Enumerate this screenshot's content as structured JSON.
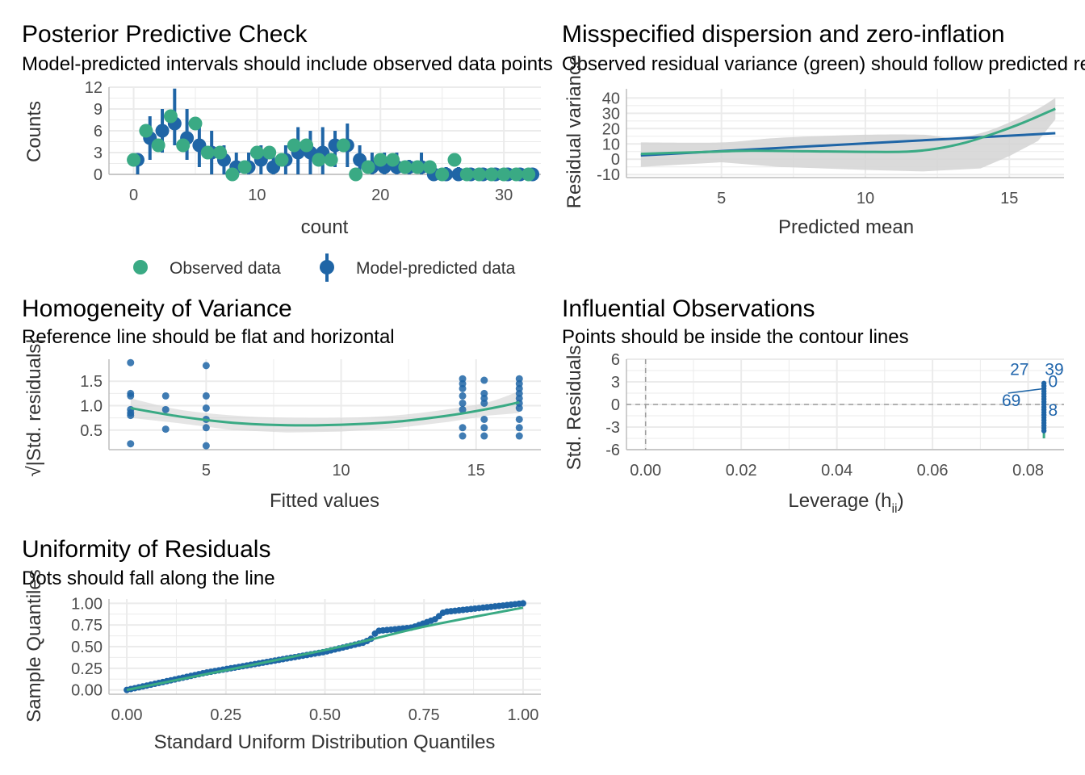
{
  "colors": {
    "observed": "#3aaa84",
    "predicted": "#1f65a6",
    "band": "#d3d3d3",
    "grid": "#ebebeb"
  },
  "panels": {
    "ppc": {
      "title": "Posterior Predictive Check",
      "subtitle": "Model-predicted intervals should include observed data points",
      "xlabel": "count",
      "ylabel": "Counts",
      "legend_observed": "Observed data",
      "legend_predicted": "Model-predicted data"
    },
    "disp": {
      "title": "Misspecified dispersion and zero-inflation",
      "subtitle": "Observed residual variance (green) should follow predicted residual variance (blue)",
      "xlabel": "Predicted mean",
      "ylabel": "Residual variance"
    },
    "homog": {
      "title": "Homogeneity of Variance",
      "subtitle": "Reference line should be flat and horizontal",
      "xlabel": "Fitted values",
      "ylabel": "√|Std. residuals|"
    },
    "infl": {
      "title": "Influential Observations",
      "subtitle": "Points should be inside the contour lines",
      "xlabel": "Leverage (h",
      "xlabel_sub": "ii",
      "xlabel_end": ")",
      "ylabel": "Std. Residuals"
    },
    "unif": {
      "title": "Uniformity of Residuals",
      "subtitle": "Dots should fall along the line",
      "xlabel": "Standard Uniform Distribution Quantiles",
      "ylabel": "Sample Quantiles"
    }
  },
  "chart_data": [
    {
      "id": "ppc",
      "type": "scatter",
      "xlim": [
        -2,
        33
      ],
      "ylim": [
        0,
        12
      ],
      "xticks": [
        0,
        10,
        20,
        30
      ],
      "yticks": [
        0,
        3,
        6,
        9,
        12
      ],
      "observed": [
        [
          0,
          2
        ],
        [
          1,
          6
        ],
        [
          2,
          4
        ],
        [
          3,
          8
        ],
        [
          4,
          4
        ],
        [
          5,
          7
        ],
        [
          6,
          3
        ],
        [
          7,
          3
        ],
        [
          8,
          0
        ],
        [
          9,
          1
        ],
        [
          10,
          3
        ],
        [
          11,
          3
        ],
        [
          12,
          2
        ],
        [
          13,
          4
        ],
        [
          14,
          4
        ],
        [
          15,
          2
        ],
        [
          16,
          2
        ],
        [
          17,
          4
        ],
        [
          18,
          0
        ],
        [
          19,
          1
        ],
        [
          20,
          2
        ],
        [
          21,
          2
        ],
        [
          22,
          1
        ],
        [
          23,
          1
        ],
        [
          24,
          1
        ],
        [
          25,
          0
        ],
        [
          26,
          2
        ],
        [
          27,
          0
        ],
        [
          28,
          0
        ],
        [
          29,
          0
        ],
        [
          30,
          0
        ],
        [
          31,
          0
        ],
        [
          32,
          0
        ]
      ],
      "predicted": [
        [
          0,
          2,
          0,
          2
        ],
        [
          1,
          5,
          2,
          8
        ],
        [
          2,
          6,
          3,
          9
        ],
        [
          3,
          7,
          4,
          11.8
        ],
        [
          4,
          5,
          2,
          9
        ],
        [
          5,
          4,
          1,
          7
        ],
        [
          6,
          3,
          0,
          6
        ],
        [
          7,
          2,
          0,
          4
        ],
        [
          8,
          1,
          0,
          3
        ],
        [
          9,
          1,
          0,
          3
        ],
        [
          10,
          2,
          0,
          4
        ],
        [
          11,
          1,
          0,
          3
        ],
        [
          12,
          2,
          0,
          4
        ],
        [
          13,
          3,
          0,
          6.5
        ],
        [
          14,
          3,
          0,
          6
        ],
        [
          15,
          3,
          0,
          6.5
        ],
        [
          16,
          4,
          1,
          6
        ],
        [
          17,
          4,
          1,
          7
        ],
        [
          18,
          2,
          0,
          4
        ],
        [
          19,
          1,
          0,
          3
        ],
        [
          20,
          1,
          0,
          3
        ],
        [
          21,
          1,
          0,
          3
        ],
        [
          22,
          1,
          0,
          2
        ],
        [
          23,
          1,
          0,
          3
        ],
        [
          24,
          0,
          0,
          1
        ],
        [
          25,
          0,
          0,
          1
        ],
        [
          26,
          0,
          0,
          1
        ],
        [
          27,
          0,
          0,
          0.5
        ],
        [
          28,
          0,
          0,
          0.5
        ],
        [
          29,
          0,
          0,
          0.5
        ],
        [
          30,
          0,
          0,
          0.5
        ],
        [
          31,
          0,
          0,
          0.5
        ],
        [
          32,
          0,
          0,
          0.5
        ]
      ]
    },
    {
      "id": "disp",
      "type": "line",
      "xlim": [
        1.7,
        16.9
      ],
      "ylim": [
        -12,
        46
      ],
      "xticks": [
        5,
        10,
        15
      ],
      "yticks": [
        -10,
        0,
        10,
        20,
        30,
        40
      ],
      "observed_line": [
        [
          2.2,
          3.5
        ],
        [
          4,
          4.5
        ],
        [
          6,
          5.5
        ],
        [
          8,
          5.2
        ],
        [
          10,
          4.8
        ],
        [
          11.5,
          5
        ],
        [
          12.5,
          7
        ],
        [
          13.5,
          11
        ],
        [
          14.5,
          17
        ],
        [
          15.5,
          24
        ],
        [
          16.6,
          33
        ]
      ],
      "predicted_line": [
        [
          2.2,
          2.5
        ],
        [
          16.6,
          17
        ]
      ],
      "band_upper": [
        [
          2.2,
          11
        ],
        [
          5,
          11
        ],
        [
          7,
          14
        ],
        [
          10,
          16
        ],
        [
          12,
          16
        ],
        [
          13,
          14
        ],
        [
          14,
          17
        ],
        [
          15,
          24
        ],
        [
          16,
          33
        ],
        [
          16.6,
          40
        ]
      ],
      "band_lower": [
        [
          2.2,
          -5
        ],
        [
          5,
          -2
        ],
        [
          7,
          -5
        ],
        [
          10,
          -7
        ],
        [
          12,
          -8
        ],
        [
          13,
          -7
        ],
        [
          14,
          -6
        ],
        [
          15,
          2
        ],
        [
          16,
          12
        ],
        [
          16.6,
          26
        ]
      ]
    },
    {
      "id": "homog",
      "type": "scatter",
      "xlim": [
        1.4,
        17.4
      ],
      "ylim": [
        0.1,
        1.95
      ],
      "xticks": [
        5,
        10,
        15
      ],
      "yticks": [
        0.5,
        1.0,
        1.5
      ],
      "points": [
        [
          2.2,
          1.88
        ],
        [
          2.2,
          1.25
        ],
        [
          2.2,
          1.2
        ],
        [
          2.2,
          0.92
        ],
        [
          2.2,
          0.85
        ],
        [
          2.2,
          0.8
        ],
        [
          2.2,
          0.22
        ],
        [
          3.5,
          1.2
        ],
        [
          3.5,
          0.92
        ],
        [
          3.5,
          0.52
        ],
        [
          5,
          1.82
        ],
        [
          5,
          1.2
        ],
        [
          5,
          0.95
        ],
        [
          5,
          0.72
        ],
        [
          5,
          0.55
        ],
        [
          5,
          0.18
        ],
        [
          14.5,
          1.55
        ],
        [
          14.5,
          1.45
        ],
        [
          14.5,
          1.35
        ],
        [
          14.5,
          1.2
        ],
        [
          14.5,
          1.05
        ],
        [
          14.5,
          0.92
        ],
        [
          14.5,
          0.55
        ],
        [
          14.5,
          0.38
        ],
        [
          15.3,
          1.52
        ],
        [
          15.3,
          1.25
        ],
        [
          15.3,
          1.15
        ],
        [
          15.3,
          1.05
        ],
        [
          15.3,
          0.72
        ],
        [
          15.3,
          0.55
        ],
        [
          15.3,
          0.38
        ],
        [
          16.6,
          1.55
        ],
        [
          16.6,
          1.45
        ],
        [
          16.6,
          1.35
        ],
        [
          16.6,
          1.25
        ],
        [
          16.6,
          1.15
        ],
        [
          16.6,
          1.05
        ],
        [
          16.6,
          0.95
        ],
        [
          16.6,
          0.72
        ],
        [
          16.6,
          0.55
        ],
        [
          16.6,
          0.38
        ]
      ],
      "fit": [
        [
          2.2,
          0.95
        ],
        [
          4,
          0.78
        ],
        [
          6,
          0.65
        ],
        [
          8,
          0.6
        ],
        [
          10,
          0.61
        ],
        [
          12,
          0.67
        ],
        [
          14,
          0.8
        ],
        [
          15.5,
          0.94
        ],
        [
          16.6,
          1.07
        ]
      ],
      "band_upper": [
        [
          2.2,
          1.15
        ],
        [
          4,
          0.92
        ],
        [
          6,
          0.8
        ],
        [
          8,
          0.75
        ],
        [
          10,
          0.75
        ],
        [
          12,
          0.8
        ],
        [
          14,
          0.93
        ],
        [
          15.5,
          1.08
        ],
        [
          16.6,
          1.3
        ]
      ],
      "band_lower": [
        [
          2.2,
          0.75
        ],
        [
          4,
          0.64
        ],
        [
          6,
          0.5
        ],
        [
          8,
          0.45
        ],
        [
          10,
          0.47
        ],
        [
          12,
          0.54
        ],
        [
          14,
          0.67
        ],
        [
          15.5,
          0.8
        ],
        [
          16.6,
          0.85
        ]
      ]
    },
    {
      "id": "infl",
      "type": "scatter",
      "xlim": [
        -0.004,
        0.0875
      ],
      "ylim": [
        -6,
        6
      ],
      "xticks": [
        0.0,
        0.02,
        0.04,
        0.06,
        0.08
      ],
      "xtick_labels": [
        "0.00",
        "0.02",
        "0.04",
        "0.06",
        "0.08"
      ],
      "yticks": [
        -6,
        -3,
        0,
        3,
        6
      ],
      "reference_x": 0,
      "reference_y": 0,
      "leverage": 0.0833,
      "residual_range": [
        -4.5,
        3
      ],
      "labels": [
        {
          "text": "27",
          "x": 0.0762,
          "y": 3.9
        },
        {
          "text": "39",
          "x": 0.0835,
          "y": 3.9
        },
        {
          "text": "0",
          "x": 0.0842,
          "y": 2.3
        },
        {
          "text": "69",
          "x": 0.0745,
          "y": -0.2
        },
        {
          "text": "8",
          "x": 0.0842,
          "y": -1.5
        }
      ]
    },
    {
      "id": "unif",
      "type": "scatter",
      "xlim": [
        -0.045,
        1.045
      ],
      "ylim": [
        -0.05,
        1.05
      ],
      "xticks": [
        0,
        0.25,
        0.5,
        0.75,
        1
      ],
      "xtick_labels": [
        "0.00",
        "0.25",
        "0.50",
        "0.75",
        "1.00"
      ],
      "yticks": [
        0,
        0.25,
        0.5,
        0.75,
        1
      ],
      "ytick_labels": [
        "0.00",
        "0.25",
        "0.50",
        "0.75",
        "1.00"
      ],
      "line": [
        [
          0,
          0
        ],
        [
          0.5,
          0.46
        ],
        [
          0.75,
          0.73
        ],
        [
          1,
          0.95
        ]
      ],
      "qq_knots": [
        [
          0,
          0
        ],
        [
          0.2,
          0.2
        ],
        [
          0.4,
          0.36
        ],
        [
          0.5,
          0.44
        ],
        [
          0.6,
          0.55
        ],
        [
          0.62,
          0.6
        ],
        [
          0.63,
          0.68
        ],
        [
          0.72,
          0.72
        ],
        [
          0.78,
          0.82
        ],
        [
          0.8,
          0.9
        ],
        [
          0.9,
          0.95
        ],
        [
          1,
          1.0
        ]
      ]
    }
  ]
}
